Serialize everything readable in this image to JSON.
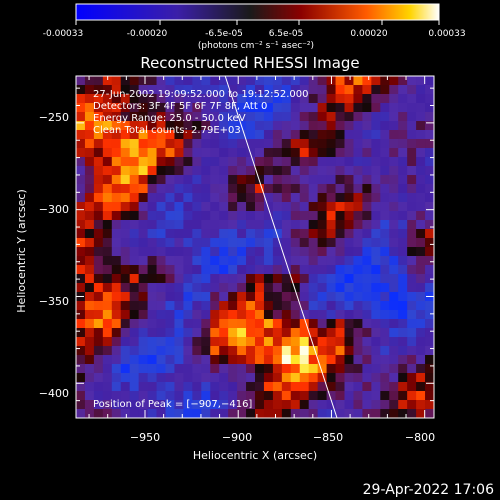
{
  "colorbar": {
    "ticks": [
      "-0.00033",
      "-0.00020",
      "-6.5e-05",
      "6.5e-05",
      "0.00020",
      "0.00033"
    ],
    "unit_label": "(photons cm⁻² s⁻¹ asec⁻²)",
    "range": [
      -0.00033,
      0.00033
    ]
  },
  "timestamp": "29-Apr-2022 17:06",
  "chart_data": {
    "type": "heatmap",
    "title": "Reconstructed RHESSI Image",
    "xlabel": "Heliocentric X (arcsec)",
    "ylabel": "Heliocentric Y (arcsec)",
    "xlim": [
      -987,
      -795
    ],
    "ylim": [
      -420,
      -223
    ],
    "xticks": [
      -950,
      -900,
      -850,
      -800
    ],
    "yticks": [
      -250,
      -300,
      -350,
      -400
    ],
    "xtick_labels": [
      "−950",
      "−900",
      "−850",
      "−800"
    ],
    "ytick_labels": [
      "−250",
      "−300",
      "−350",
      "−400"
    ],
    "annotations": [
      "27-Jun-2002 19:09:52.000 to 19:12:52.000",
      "Detectors: 3F 4F 5F 6F 7F 8F, Att 0",
      "Energy Range: 25.0 - 50.0 keV",
      "Clean    Total counts: 2.79E+03"
    ],
    "peak_label": "Position of Peak = [−907,−416]",
    "peak": [
      -907,
      -416
    ],
    "limb_line": [
      [
        -907,
        -223
      ],
      [
        -847,
        -420
      ]
    ],
    "colors": {
      "background": "#000000",
      "foreground": "#ffffff",
      "colormap": "rainbow-hot"
    }
  }
}
